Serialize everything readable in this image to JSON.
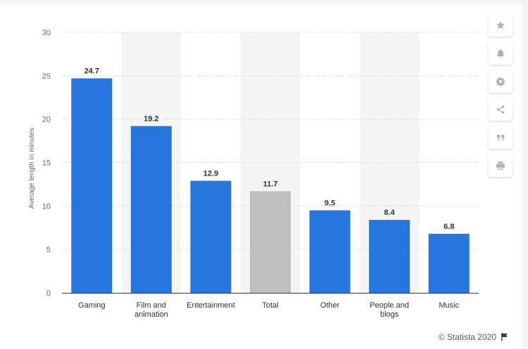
{
  "chart_data": {
    "type": "bar",
    "categories": [
      "Gaming",
      "Film and\nanimation",
      "Entertainment",
      "Total",
      "Other",
      "People and\nblogs",
      "Music"
    ],
    "values": [
      24.7,
      19.2,
      12.9,
      11.7,
      9.5,
      8.4,
      6.8
    ],
    "value_labels": [
      "24.7",
      "19.2",
      "12.9",
      "11.7",
      "9.5",
      "8.4",
      "6.8"
    ],
    "highlight_category": "Total",
    "ylabel": "Average length in minutes",
    "ylim": [
      0,
      30
    ],
    "yticks": [
      0,
      5,
      10,
      15,
      20,
      25,
      30
    ],
    "grid": true,
    "colors": {
      "bar": "#2876dd",
      "highlight": "#bfbfbf",
      "band": "#f5f5f5"
    }
  },
  "toolbar": {
    "buttons": [
      {
        "name": "favorite-button",
        "icon": "star-icon"
      },
      {
        "name": "notification-button",
        "icon": "bell-icon"
      },
      {
        "name": "settings-button",
        "icon": "gear-icon"
      },
      {
        "name": "share-button",
        "icon": "share-icon"
      },
      {
        "name": "cite-button",
        "icon": "quote-icon"
      },
      {
        "name": "print-button",
        "icon": "print-icon"
      }
    ]
  },
  "credit": {
    "text": "© Statista 2020",
    "icon": "flag-icon"
  }
}
